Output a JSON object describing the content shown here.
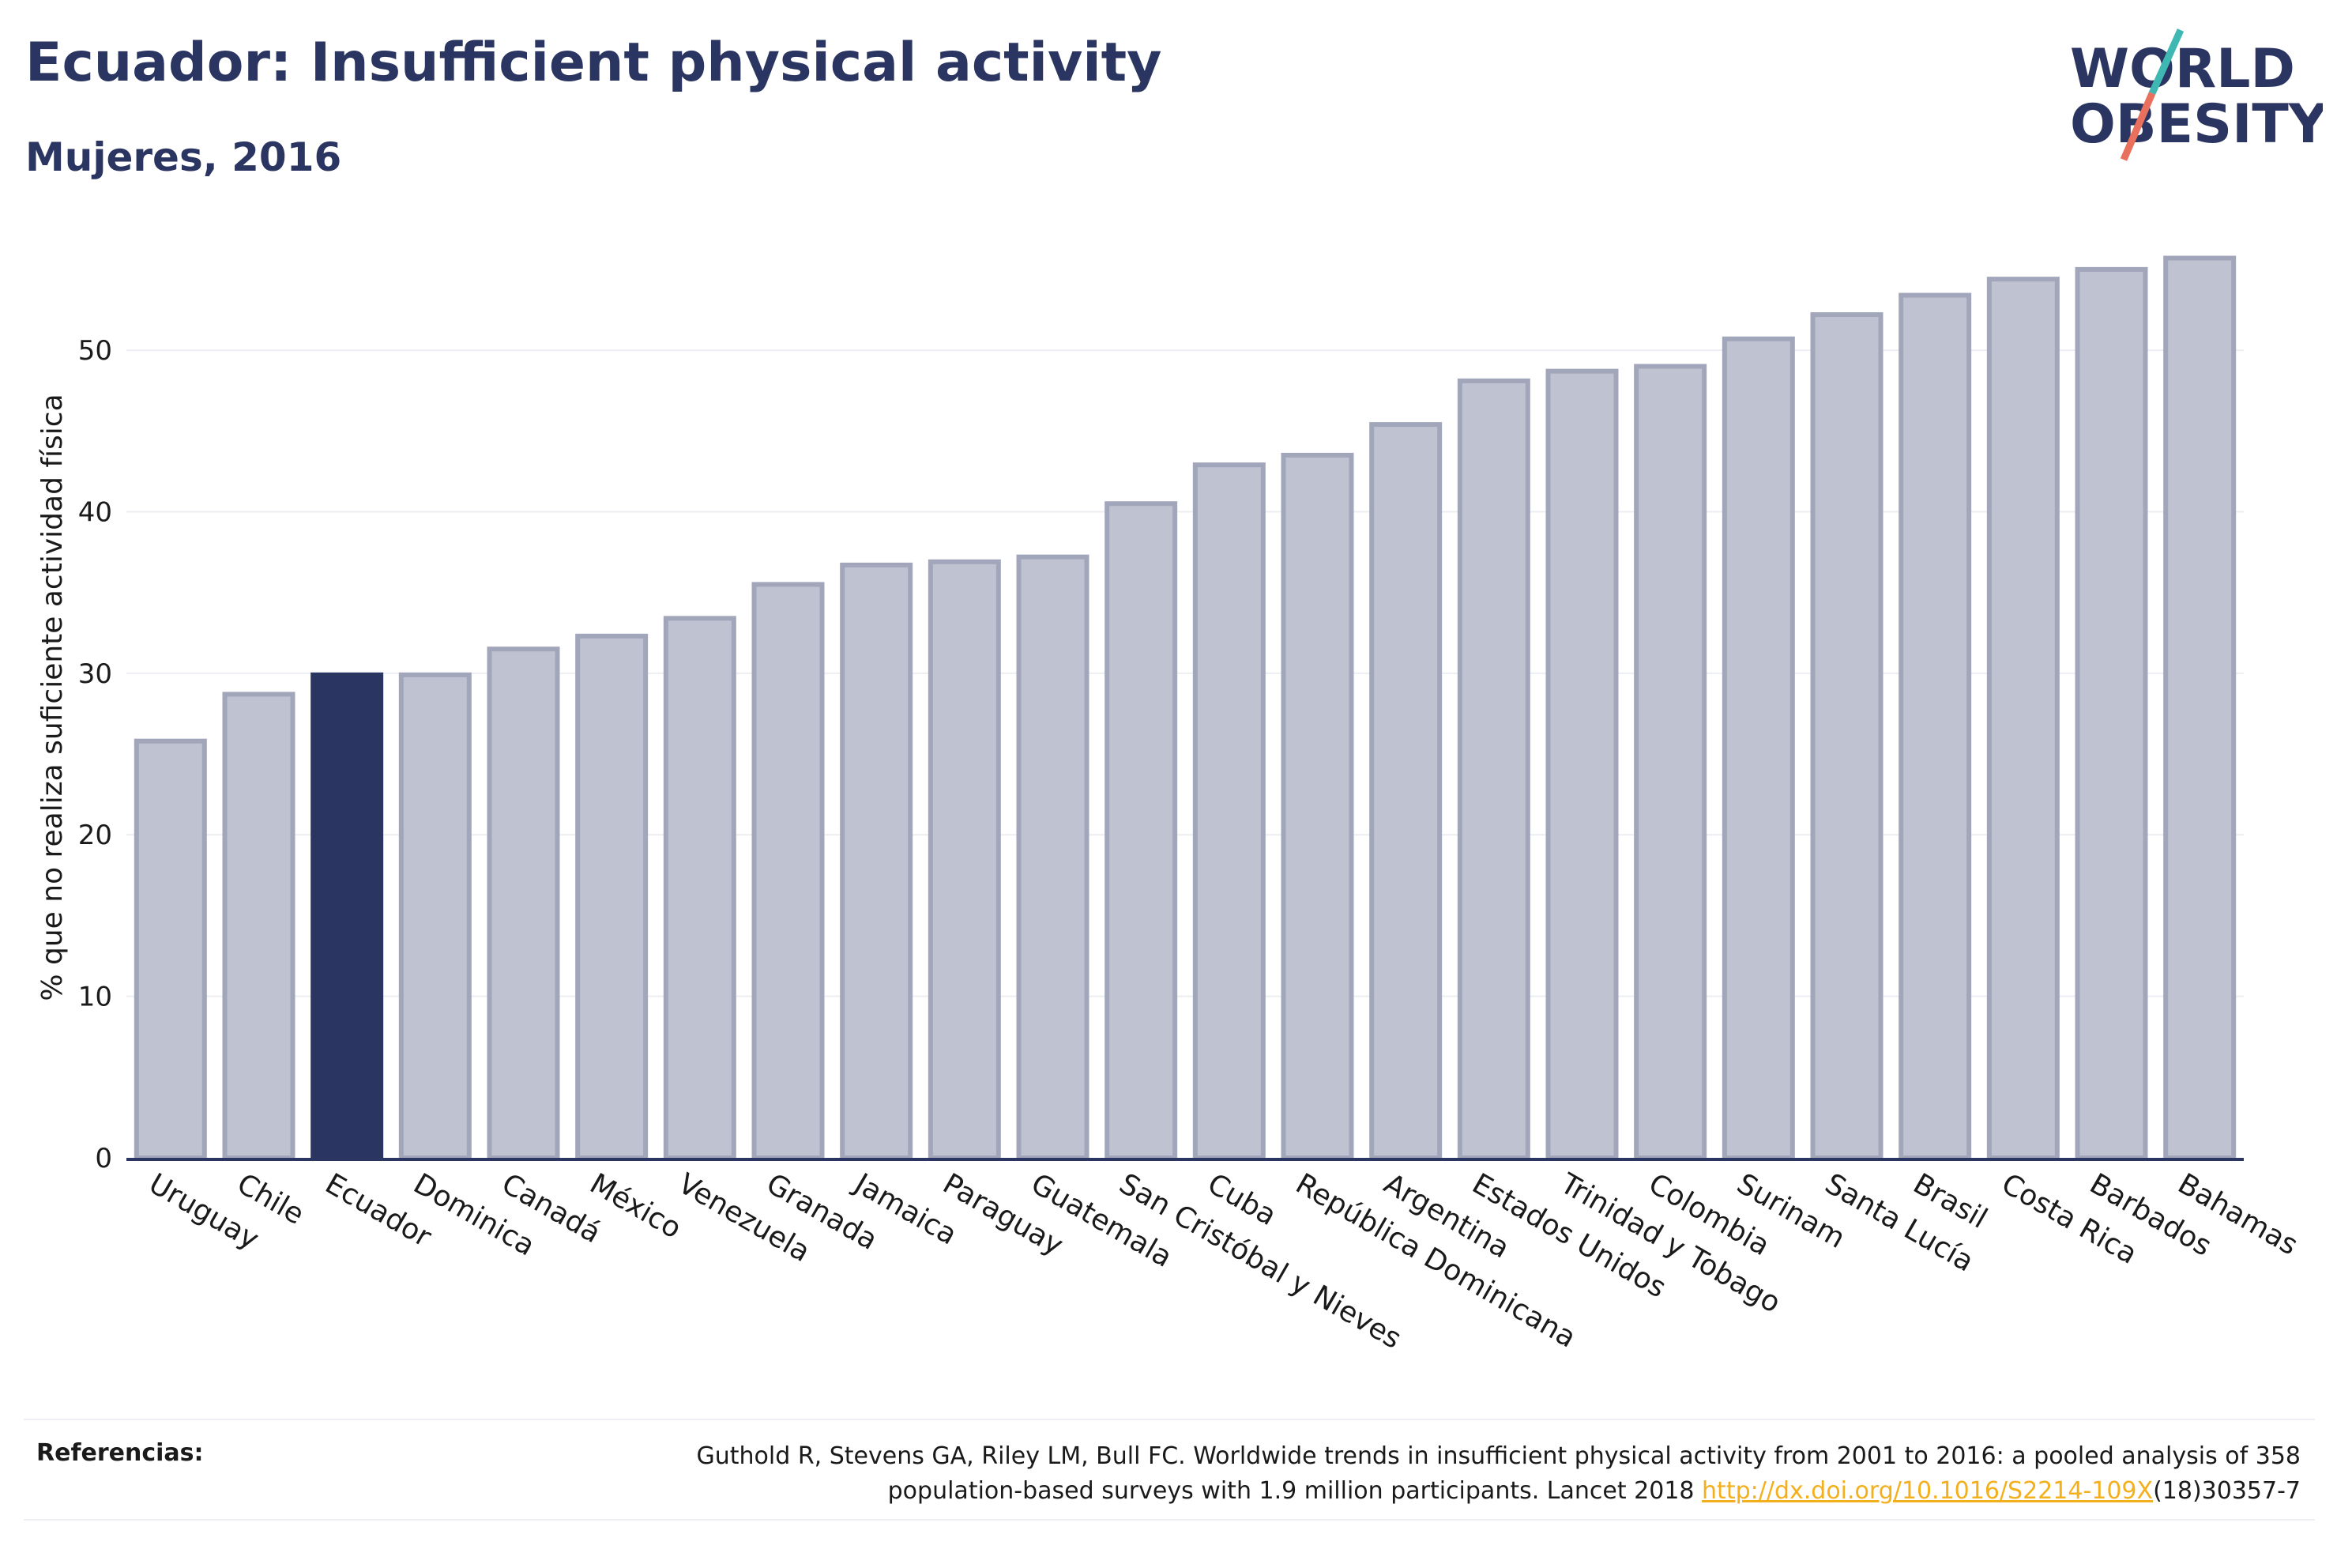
{
  "header": {
    "title": "Ecuador: Insufficient physical activity",
    "subtitle": "Mujeres, 2016"
  },
  "logo": {
    "line1": "WORLD",
    "line2": "OBESITY",
    "colors": {
      "text": "#2b3561",
      "slash_top": "#3fb8b3",
      "slash_bottom": "#e9705c"
    }
  },
  "chart_data": {
    "type": "bar",
    "ylabel": "% que no realiza suficiente actividad física",
    "xlabel": "",
    "ylim": [
      0,
      57
    ],
    "yticks": [
      0,
      10,
      20,
      30,
      40,
      50
    ],
    "grid": true,
    "highlight": "Ecuador",
    "colors": {
      "bar": "#bfc2d0",
      "bar_border": "#a1a6bb",
      "highlight": "#2b3561",
      "grid": "#eceef2"
    },
    "categories": [
      "Uruguay",
      "Chile",
      "Ecuador",
      "Dominica",
      "Canadá",
      "México",
      "Venezuela",
      "Granada",
      "Jamaica",
      "Paraguay",
      "Guatemala",
      "San Cristóbal y Nieves",
      "Cuba",
      "República Dominicana",
      "Argentina",
      "Estados Unidos",
      "Trinidad y Tobago",
      "Colombia",
      "Surinam",
      "Santa Lucía",
      "Brasil",
      "Costa Rica",
      "Barbados",
      "Bahamas"
    ],
    "values": [
      25.8,
      28.7,
      29.9,
      29.9,
      31.5,
      32.3,
      33.4,
      35.5,
      36.7,
      36.9,
      37.2,
      40.5,
      42.9,
      43.5,
      45.4,
      48.1,
      48.7,
      49.0,
      50.7,
      52.2,
      53.4,
      54.4,
      55.0,
      55.7
    ]
  },
  "references": {
    "label": "Referencias:",
    "line1": "Guthold R, Stevens GA, Riley LM, Bull FC. Worldwide trends in insufficient physical activity from 2001 to 2016: a pooled analysis of 358",
    "line2_prefix": "population-based surveys with 1.9 million participants. Lancet 2018 ",
    "link": "http://dx.doi.org/10.1016/S2214-109X",
    "line2_suffix": "(18)30357-7"
  }
}
